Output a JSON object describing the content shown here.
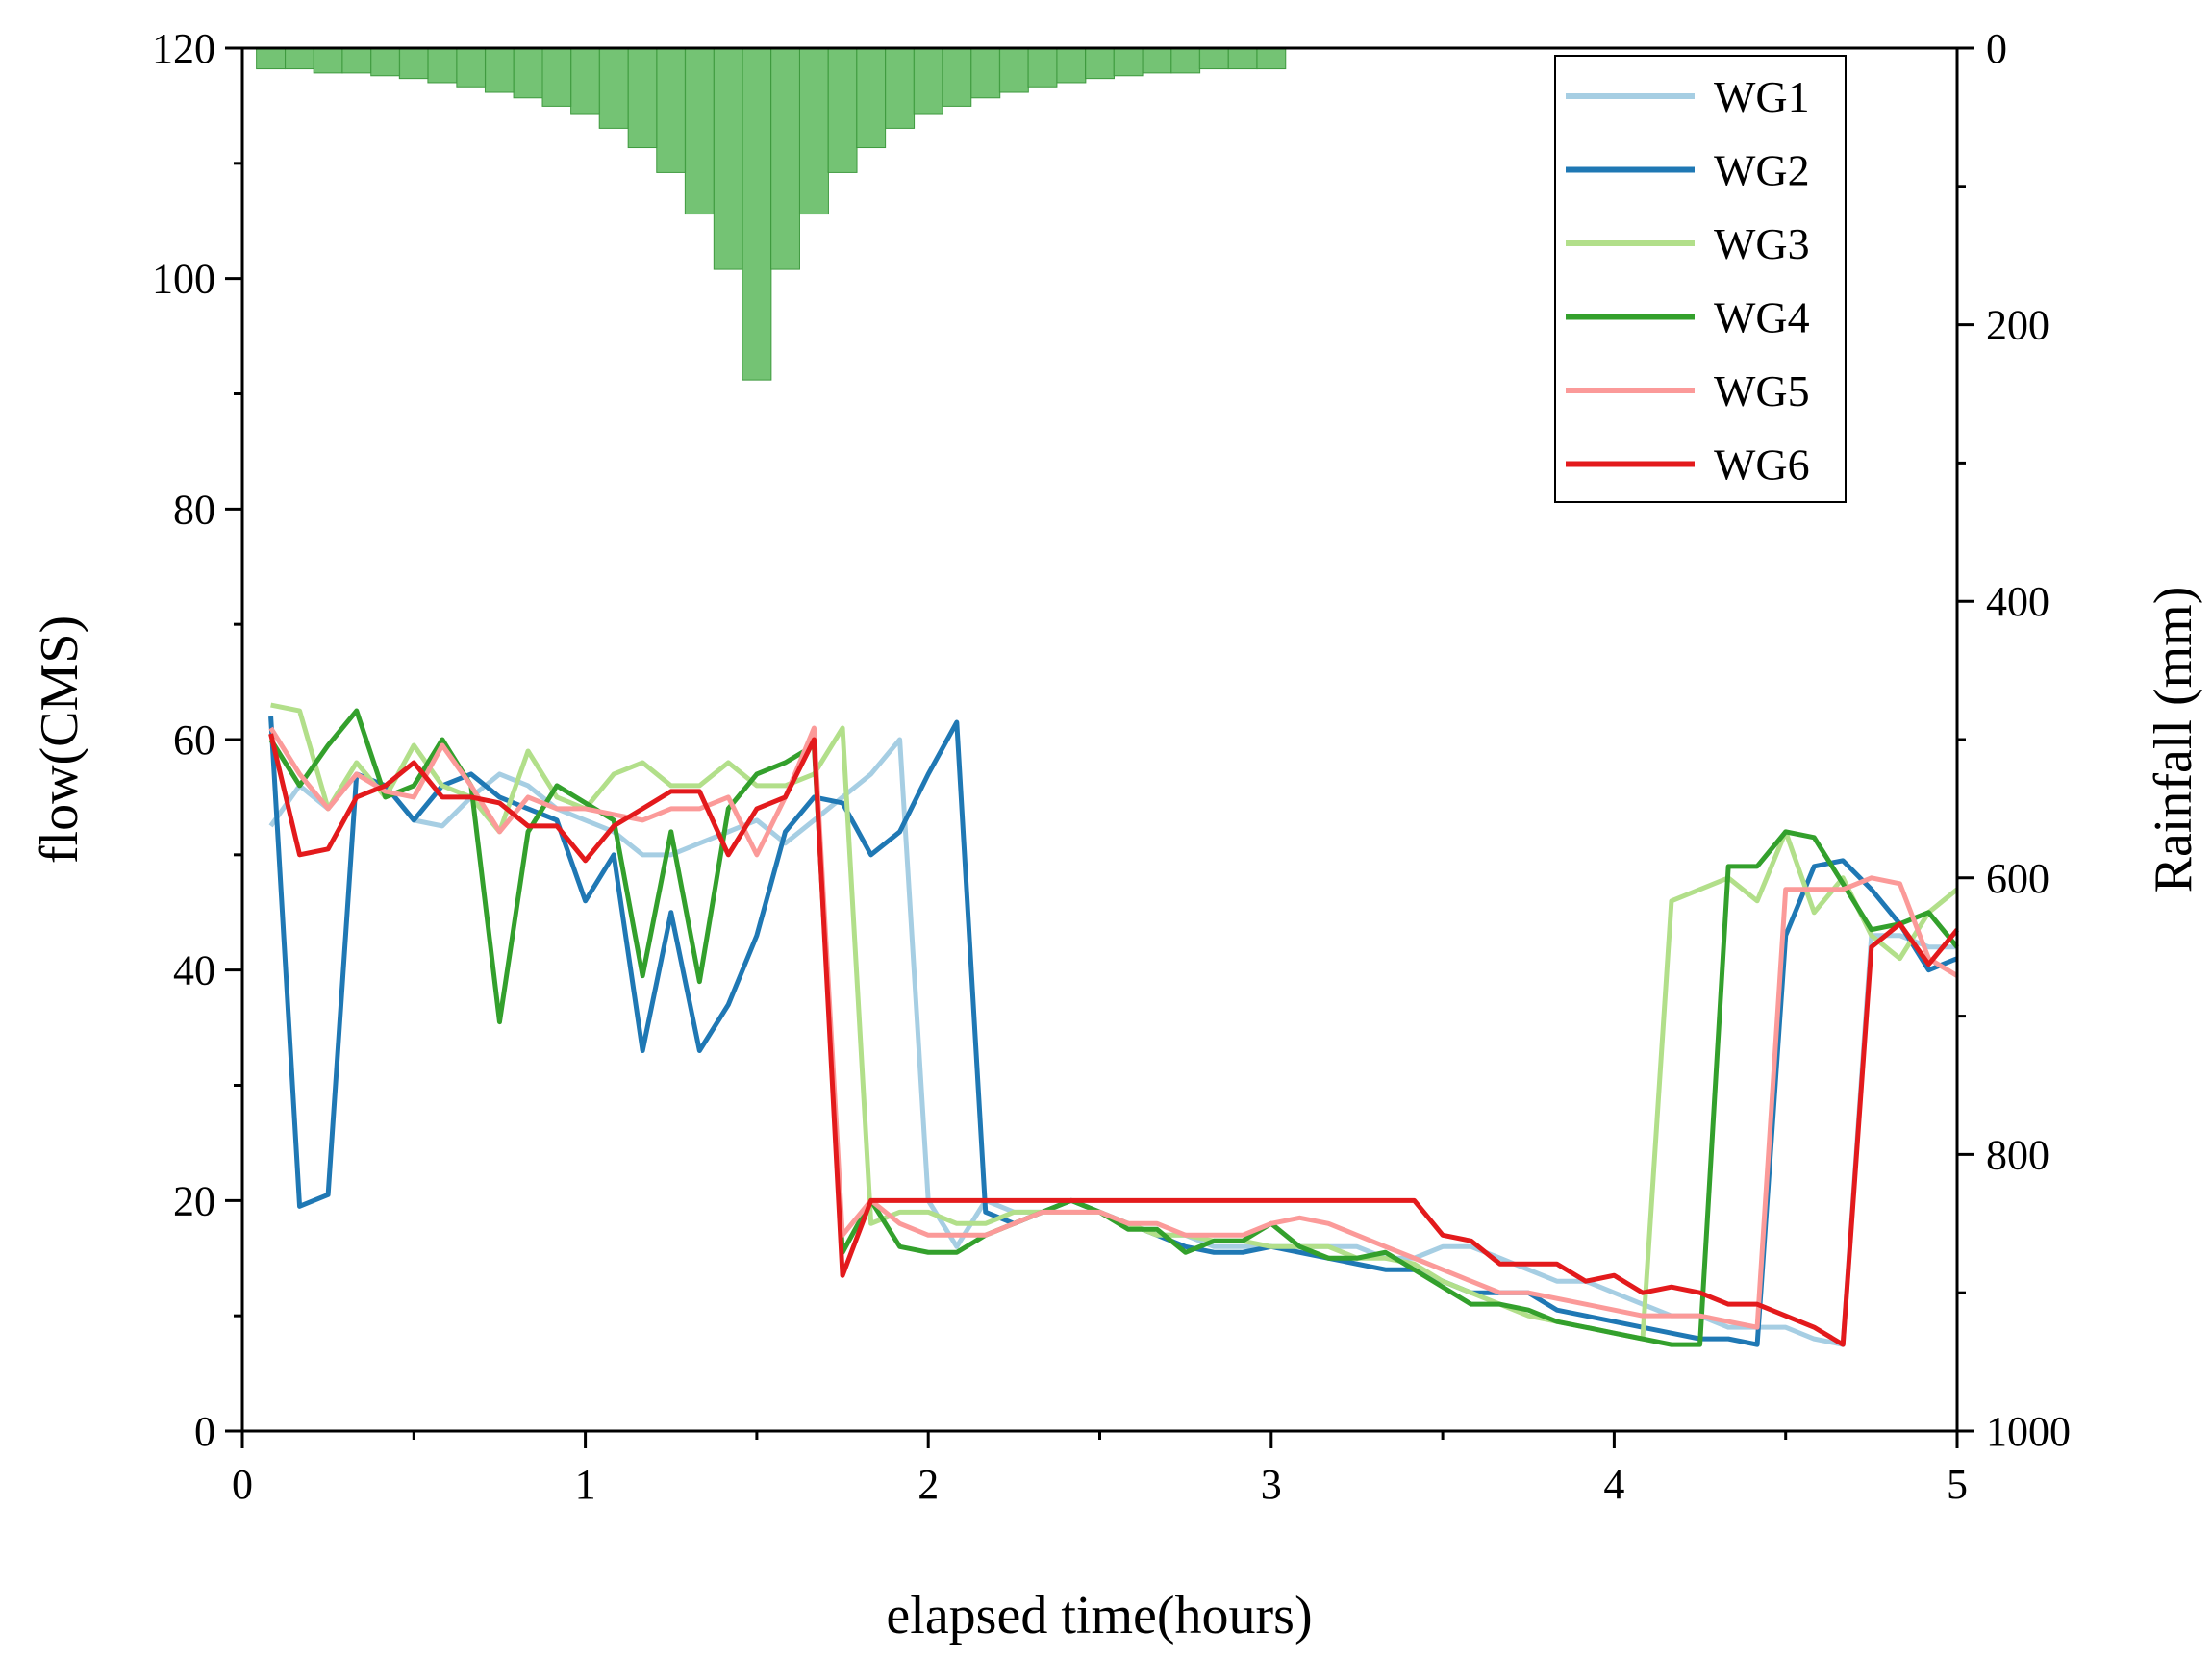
{
  "chart_data": {
    "type": "line",
    "title": "",
    "xlabel": "elapsed time(hours)",
    "ylabel": "flow(CMS)",
    "y2label": "Rainfall (mm)",
    "xlim": [
      0,
      5
    ],
    "ylim": [
      0,
      120
    ],
    "y2lim": [
      0,
      1000
    ],
    "y2_inverted": true,
    "x_ticks": [
      "0",
      "1",
      "2",
      "3",
      "4",
      "5"
    ],
    "y_ticks": [
      "0",
      "20",
      "40",
      "60",
      "80",
      "100",
      "120"
    ],
    "y2_ticks": [
      "0",
      "200",
      "400",
      "600",
      "800",
      "1000"
    ],
    "legend_position": "top-right",
    "rainfall": {
      "type": "bar",
      "color": "#5cb85c",
      "x": [
        0.083,
        0.167,
        0.25,
        0.333,
        0.417,
        0.5,
        0.583,
        0.667,
        0.75,
        0.833,
        0.917,
        1.0,
        1.083,
        1.167,
        1.25,
        1.333,
        1.417,
        1.5,
        1.583,
        1.667,
        1.75,
        1.833,
        1.917,
        2.0,
        2.083,
        2.167,
        2.25,
        2.333,
        2.417,
        2.5,
        2.583,
        2.667,
        2.75,
        2.833,
        2.917,
        3.0
      ],
      "values": [
        15,
        15,
        18,
        18,
        20,
        22,
        25,
        28,
        32,
        36,
        42,
        48,
        58,
        72,
        90,
        120,
        160,
        240,
        160,
        120,
        90,
        72,
        58,
        48,
        42,
        36,
        32,
        28,
        25,
        22,
        20,
        18,
        18,
        15,
        15,
        15
      ]
    },
    "series": [
      {
        "name": "WG1",
        "color": "#a6cee3",
        "x": [
          0.083,
          0.167,
          0.25,
          0.333,
          0.417,
          0.5,
          0.583,
          0.667,
          0.75,
          0.833,
          0.917,
          1.0,
          1.083,
          1.167,
          1.25,
          1.333,
          1.417,
          1.5,
          1.583,
          1.667,
          1.75,
          1.833,
          1.917,
          2.0,
          2.083,
          2.167,
          2.25,
          2.333,
          2.417,
          2.5,
          2.583,
          2.667,
          2.75,
          2.833,
          2.917,
          3.0,
          3.083,
          3.167,
          3.25,
          3.333,
          3.417,
          3.5,
          3.583,
          3.667,
          3.75,
          3.833,
          3.917,
          4.0,
          4.083,
          4.167,
          4.25,
          4.333,
          4.417,
          4.5,
          4.583,
          4.667,
          4.75,
          4.833,
          4.917,
          5.0
        ],
        "values": [
          52.5,
          56,
          54,
          57,
          56,
          53,
          52.5,
          55,
          57,
          56,
          54,
          53,
          52,
          50,
          50,
          51,
          52,
          53,
          51,
          53,
          55,
          57,
          60,
          20,
          16,
          20,
          19,
          19,
          20,
          19,
          18,
          17,
          17,
          16,
          16,
          16,
          16,
          16,
          16,
          15,
          15,
          16,
          16,
          15,
          14,
          13,
          13,
          12,
          11,
          10,
          10,
          9,
          9,
          9,
          8,
          7.5,
          43,
          43,
          42,
          42
        ]
      },
      {
        "name": "WG2",
        "color": "#1f78b4",
        "x": [
          0.083,
          0.167,
          0.25,
          0.333,
          0.417,
          0.5,
          0.583,
          0.667,
          0.75,
          0.833,
          0.917,
          1.0,
          1.083,
          1.167,
          1.25,
          1.333,
          1.417,
          1.5,
          1.583,
          1.667,
          1.75,
          1.833,
          1.917,
          2.0,
          2.083,
          2.167,
          2.25,
          2.333,
          2.417,
          2.5,
          2.583,
          2.667,
          2.75,
          2.833,
          2.917,
          3.0,
          3.083,
          3.167,
          3.25,
          3.333,
          3.417,
          3.5,
          3.583,
          3.667,
          3.75,
          3.833,
          3.917,
          4.0,
          4.083,
          4.167,
          4.25,
          4.333,
          4.417,
          4.5,
          4.583,
          4.667,
          4.75,
          4.833,
          4.917,
          5.0
        ],
        "values": [
          62,
          19.5,
          20.5,
          57,
          56,
          53,
          56,
          57,
          55,
          54,
          53,
          46,
          50,
          33,
          45,
          33,
          37,
          43,
          52,
          55,
          54.5,
          50,
          52,
          57,
          61.5,
          19,
          18,
          19,
          20,
          19,
          18,
          17,
          16,
          15.5,
          15.5,
          16,
          15.5,
          15,
          14.5,
          14,
          14,
          13,
          12,
          12,
          12,
          10.5,
          10,
          9.5,
          9,
          8.5,
          8,
          8,
          7.5,
          43,
          49,
          49.5,
          47,
          44,
          40,
          41
        ]
      },
      {
        "name": "WG3",
        "color": "#b2df8a",
        "x": [
          0.083,
          0.167,
          0.25,
          0.333,
          0.417,
          0.5,
          0.583,
          0.667,
          0.75,
          0.833,
          0.917,
          1.0,
          1.083,
          1.167,
          1.25,
          1.333,
          1.417,
          1.5,
          1.583,
          1.667,
          1.75,
          1.833,
          1.917,
          2.0,
          2.083,
          2.167,
          2.25,
          2.333,
          2.417,
          2.5,
          2.583,
          2.667,
          2.75,
          2.833,
          2.917,
          3.0,
          3.083,
          3.167,
          3.25,
          3.333,
          3.417,
          3.5,
          3.583,
          3.667,
          3.75,
          3.833,
          3.917,
          4.0,
          4.083,
          4.167,
          4.25,
          4.333,
          4.417,
          4.5,
          4.583,
          4.667,
          4.75,
          4.833,
          4.917,
          5.0
        ],
        "values": [
          63,
          62.5,
          54,
          58,
          55,
          59.5,
          56,
          55,
          52,
          59,
          55,
          54,
          57,
          58,
          56,
          56,
          58,
          56,
          56,
          57,
          61,
          18,
          19,
          19,
          18,
          18,
          19,
          19,
          19,
          19,
          18,
          17,
          17,
          16.5,
          16.5,
          16,
          16,
          16,
          15,
          15,
          14.5,
          13,
          12,
          11,
          10,
          9.5,
          9,
          8.5,
          8,
          46,
          47,
          48,
          46,
          52,
          45,
          48,
          43,
          41,
          45,
          47
        ]
      },
      {
        "name": "WG4",
        "color": "#33a02c",
        "x": [
          0.083,
          0.167,
          0.25,
          0.333,
          0.417,
          0.5,
          0.583,
          0.667,
          0.75,
          0.833,
          0.917,
          1.0,
          1.083,
          1.167,
          1.25,
          1.333,
          1.417,
          1.5,
          1.583,
          1.667,
          1.75,
          1.833,
          1.917,
          2.0,
          2.083,
          2.167,
          2.25,
          2.333,
          2.417,
          2.5,
          2.583,
          2.667,
          2.75,
          2.833,
          2.917,
          3.0,
          3.083,
          3.167,
          3.25,
          3.333,
          3.417,
          3.5,
          3.583,
          3.667,
          3.75,
          3.833,
          3.917,
          4.0,
          4.083,
          4.167,
          4.25,
          4.333,
          4.417,
          4.5,
          4.583,
          4.667,
          4.75,
          4.833,
          4.917,
          5.0
        ],
        "values": [
          60,
          56,
          59.5,
          62.5,
          55,
          56,
          60,
          56,
          35.5,
          52,
          56,
          54.5,
          53,
          39.5,
          52,
          39,
          54,
          57,
          58,
          59.5,
          15.5,
          20,
          16,
          15.5,
          15.5,
          17,
          18,
          19,
          20,
          19,
          17.5,
          17.5,
          15.5,
          16.5,
          16.5,
          18,
          16,
          15,
          15,
          15.5,
          14,
          12.5,
          11,
          11,
          10.5,
          9.5,
          9,
          8.5,
          8,
          7.5,
          7.5,
          49,
          49,
          52,
          51.5,
          47.5,
          43.5,
          44,
          45,
          42
        ]
      },
      {
        "name": "WG5",
        "color": "#fb9a99",
        "x": [
          0.083,
          0.167,
          0.25,
          0.333,
          0.417,
          0.5,
          0.583,
          0.667,
          0.75,
          0.833,
          0.917,
          1.0,
          1.083,
          1.167,
          1.25,
          1.333,
          1.417,
          1.5,
          1.583,
          1.667,
          1.75,
          1.833,
          1.917,
          2.0,
          2.083,
          2.167,
          2.25,
          2.333,
          2.417,
          2.5,
          2.583,
          2.667,
          2.75,
          2.833,
          2.917,
          3.0,
          3.083,
          3.167,
          3.25,
          3.333,
          3.417,
          3.5,
          3.583,
          3.667,
          3.75,
          3.833,
          3.917,
          4.0,
          4.083,
          4.167,
          4.25,
          4.333,
          4.417,
          4.5,
          4.583,
          4.667,
          4.75,
          4.833,
          4.917,
          5.0
        ],
        "values": [
          61,
          57,
          54,
          57,
          55.5,
          55,
          59.5,
          56,
          52,
          55,
          54,
          54,
          53.5,
          53,
          54,
          54,
          55,
          50,
          55,
          61,
          17,
          20,
          18,
          17,
          17,
          17,
          18,
          19,
          19,
          19,
          18,
          18,
          17,
          17,
          17,
          18,
          18.5,
          18,
          17,
          16,
          15,
          14,
          13,
          12,
          12,
          11.5,
          11,
          10.5,
          10,
          10,
          10,
          9.5,
          9,
          47,
          47,
          47,
          48,
          47.5,
          41,
          39.5
        ]
      },
      {
        "name": "WG6",
        "color": "#e31a1c",
        "x": [
          0.083,
          0.167,
          0.25,
          0.333,
          0.417,
          0.5,
          0.583,
          0.667,
          0.75,
          0.833,
          0.917,
          1.0,
          1.083,
          1.167,
          1.25,
          1.333,
          1.417,
          1.5,
          1.583,
          1.667,
          1.75,
          1.833,
          1.917,
          2.0,
          2.083,
          2.167,
          2.25,
          2.333,
          2.417,
          2.5,
          2.583,
          2.667,
          2.75,
          2.833,
          2.917,
          3.0,
          3.083,
          3.167,
          3.25,
          3.333,
          3.417,
          3.5,
          3.583,
          3.667,
          3.75,
          3.833,
          3.917,
          4.0,
          4.083,
          4.167,
          4.25,
          4.333,
          4.417,
          4.5,
          4.583,
          4.667,
          4.75,
          4.833,
          4.917,
          5.0
        ],
        "values": [
          60.5,
          50,
          50.5,
          55,
          56,
          58,
          55,
          55,
          54.5,
          52.5,
          52.5,
          49.5,
          52.5,
          54,
          55.5,
          55.5,
          50,
          54,
          55,
          60,
          13.5,
          20,
          20,
          20,
          20,
          20,
          20,
          20,
          20,
          20,
          20,
          20,
          20,
          20,
          20,
          20,
          20,
          20,
          20,
          20,
          20,
          17,
          16.5,
          14.5,
          14.5,
          14.5,
          13,
          13.5,
          12,
          12.5,
          12,
          11,
          11,
          10,
          9,
          7.5,
          42,
          44,
          40.5,
          43.5
        ]
      }
    ]
  }
}
